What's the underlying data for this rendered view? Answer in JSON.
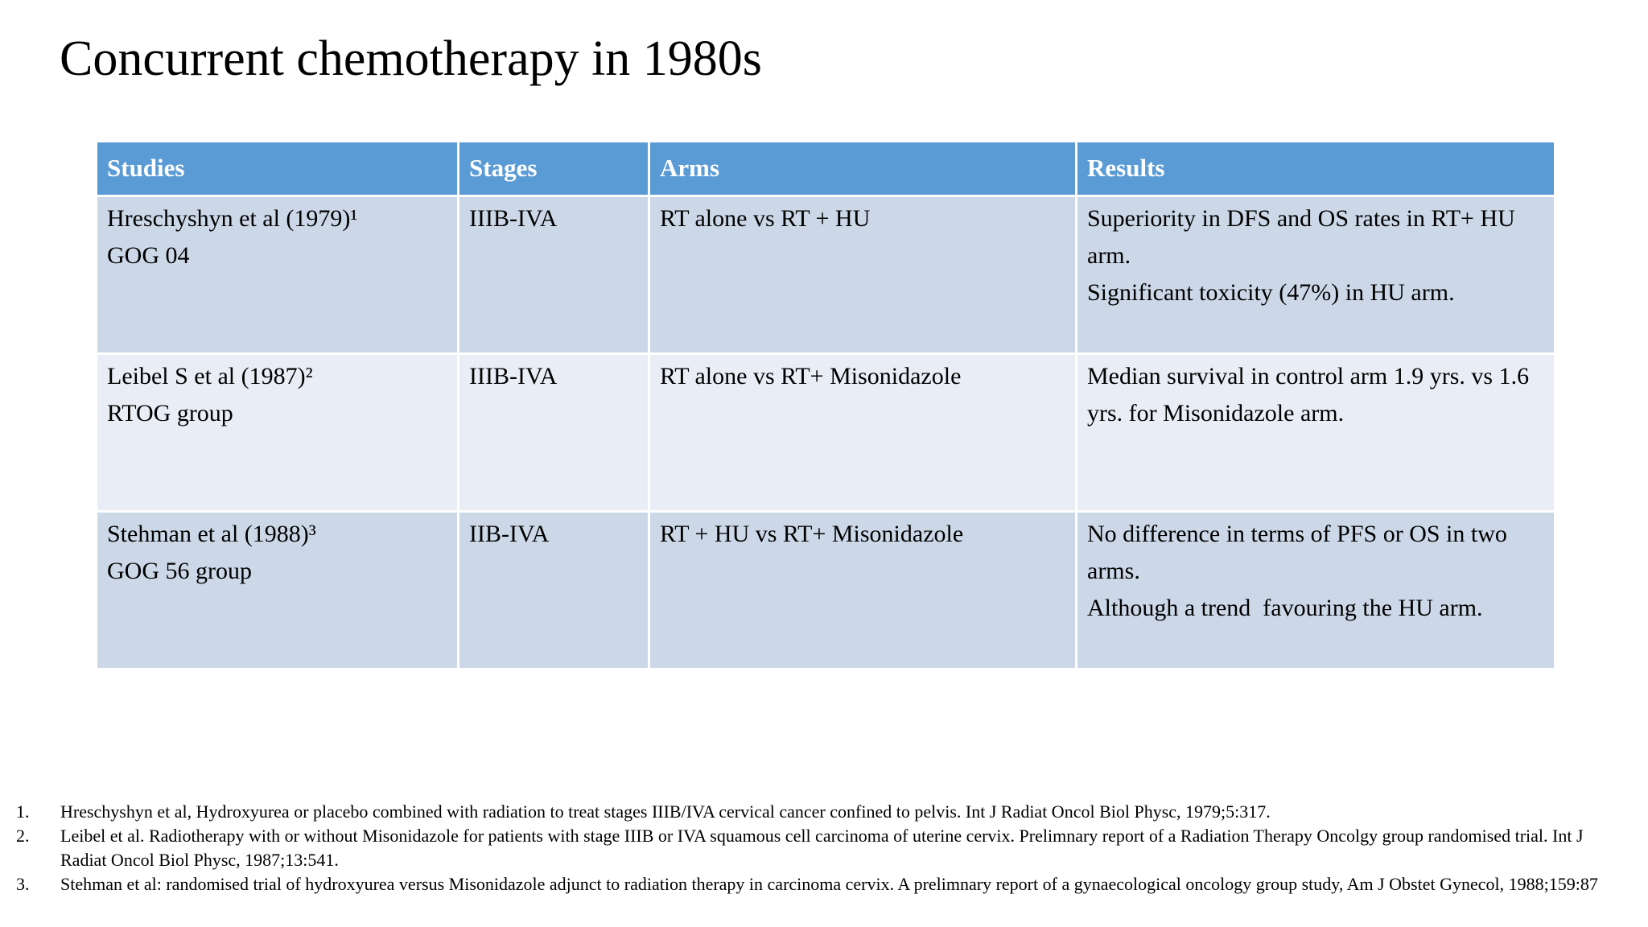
{
  "slide": {
    "title": "Concurrent chemotherapy in 1980s",
    "colors": {
      "header_bg": "#5b9bd5",
      "band_dark": "#ccd8e8",
      "band_light": "#e9edf5",
      "header_text": "#ffffff",
      "body_text": "#000000",
      "page_bg": "#ffffff"
    },
    "table": {
      "columns": [
        "Studies",
        "Stages",
        "Arms",
        "Results"
      ],
      "rows": [
        {
          "studies": [
            "Hreschyshyn et al (1979)¹",
            "GOG 04"
          ],
          "stages": "IIIB-IVA",
          "arms": "RT alone vs RT + HU",
          "results": [
            "Superiority in DFS and OS rates in RT+ HU arm.",
            "Significant toxicity (47%) in HU arm."
          ]
        },
        {
          "studies": [
            "Leibel S et al (1987)²",
            "RTOG group"
          ],
          "stages": "IIIB-IVA",
          "arms": "RT alone vs RT+ Misonidazole",
          "results": [
            "Median survival in control arm 1.9 yrs. vs 1.6 yrs. for Misonidazole arm."
          ]
        },
        {
          "studies": [
            "Stehman et al (1988)³",
            "GOG 56 group"
          ],
          "stages": "IIB-IVA",
          "arms": "RT + HU vs RT+ Misonidazole",
          "results": [
            "No difference in terms of PFS or OS in two arms.",
            "Although a trend  favouring the HU arm."
          ]
        }
      ]
    },
    "footnotes": [
      {
        "marker": "1.",
        "text": "Hreschyshyn et al, Hydroxyurea or placebo combined with radiation to treat stages IIIB/IVA cervical cancer confined to pelvis. Int J Radiat Oncol Biol Physc, 1979;5:317."
      },
      {
        "marker": "2.",
        "text": "Leibel et al. Radiotherapy with or without Misonidazole for patients with stage IIIB or IVA squamous cell carcinoma of uterine cervix. Prelimnary report of a Radiation Therapy Oncolgy group randomised trial. Int J Radiat Oncol Biol Physc, 1987;13:541."
      },
      {
        "marker": "3.",
        "text": "Stehman et al: randomised trial of hydroxyurea versus Misonidazole adjunct to radiation therapy in carcinoma cervix. A prelimnary report of a gynaecological oncology group study, Am J Obstet Gynecol, 1988;159:87"
      }
    ]
  }
}
